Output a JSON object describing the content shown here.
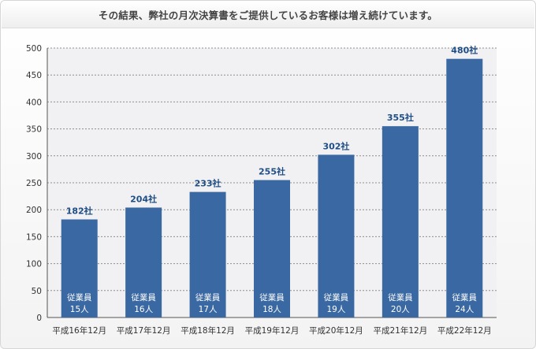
{
  "chart_data": {
    "type": "bar",
    "title": "その結果、弊社の月次決算書をご提供しているお客様は増え続けています。",
    "categories": [
      "平成16年12月",
      "平成17年12月",
      "平成18年12月",
      "平成19年12月",
      "平成20年12月",
      "平成21年12月",
      "平成22年12月"
    ],
    "values": [
      182,
      204,
      233,
      255,
      302,
      355,
      480
    ],
    "value_labels": [
      "182社",
      "204社",
      "233社",
      "255社",
      "302社",
      "355社",
      "480社"
    ],
    "employee_prefix": "従業員",
    "employee_labels": [
      "15人",
      "16人",
      "17人",
      "18人",
      "19人",
      "20人",
      "24人"
    ],
    "yticks": [
      "0",
      "50",
      "100",
      "150",
      "200",
      "250",
      "300",
      "350",
      "400",
      "450",
      "500"
    ],
    "ylim": [
      0,
      500
    ],
    "grid": true,
    "colors": {
      "bar": "#3a68a2",
      "value_label": "#1f4e86",
      "plot_bg": "#f1f1f3"
    }
  }
}
